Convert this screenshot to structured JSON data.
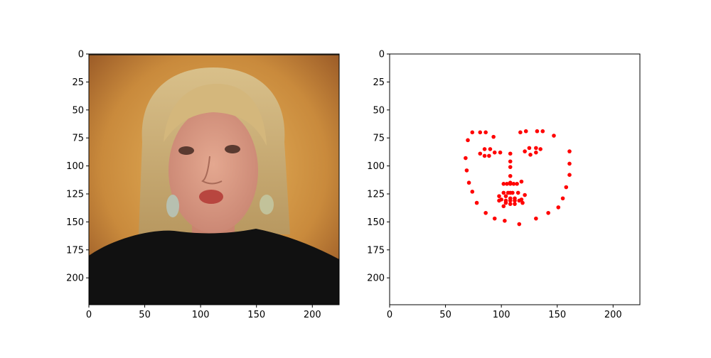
{
  "colors": {
    "landmark": "#ff0000",
    "frame": "#000000",
    "background": "#ffffff"
  },
  "chart_data": [
    {
      "type": "image",
      "description_note": "",
      "xlim": [
        0,
        224
      ],
      "ylim": [
        224,
        0
      ],
      "xticks": [
        0,
        50,
        100,
        150,
        200
      ],
      "yticks": [
        0,
        25,
        50,
        75,
        100,
        125,
        150,
        175,
        200
      ],
      "xtick_labels": [
        "0",
        "50",
        "100",
        "150",
        "200"
      ],
      "ytick_labels": [
        "0",
        "25",
        "50",
        "75",
        "100",
        "125",
        "150",
        "175",
        "200"
      ]
    },
    {
      "type": "scatter",
      "xlim": [
        0,
        224
      ],
      "ylim": [
        224,
        0
      ],
      "xticks": [
        0,
        50,
        100,
        150,
        200
      ],
      "yticks": [
        0,
        25,
        50,
        75,
        100,
        125,
        150,
        175,
        200
      ],
      "xtick_labels": [
        "0",
        "50",
        "100",
        "150",
        "200"
      ],
      "ytick_labels": [
        "0",
        "25",
        "50",
        "75",
        "100",
        "125",
        "150",
        "175",
        "200"
      ],
      "series": [
        {
          "points": [
            [
              68,
              93
            ],
            [
              69,
              104
            ],
            [
              71,
              115
            ],
            [
              74,
              123
            ],
            [
              78,
              133
            ],
            [
              86,
              142
            ],
            [
              94,
              147
            ],
            [
              103,
              149
            ],
            [
              116,
              152
            ],
            [
              131,
              147
            ],
            [
              142,
              142
            ],
            [
              151,
              137
            ],
            [
              155,
              129
            ],
            [
              158,
              119
            ],
            [
              161,
              108
            ],
            [
              161,
              98
            ],
            [
              161,
              87
            ],
            [
              70,
              77
            ],
            [
              74,
              70
            ],
            [
              81,
              70
            ],
            [
              86,
              70
            ],
            [
              93,
              74
            ],
            [
              117,
              70
            ],
            [
              122,
              69
            ],
            [
              132,
              69
            ],
            [
              137,
              69
            ],
            [
              147,
              73
            ],
            [
              108,
              89
            ],
            [
              108,
              96
            ],
            [
              108,
              101
            ],
            [
              108,
              109
            ],
            [
              108,
              115
            ],
            [
              102,
              116
            ],
            [
              105,
              116
            ],
            [
              108,
              116
            ],
            [
              111,
              116
            ],
            [
              114,
              116
            ],
            [
              81,
              89
            ],
            [
              85,
              85
            ],
            [
              90,
              85
            ],
            [
              94,
              88
            ],
            [
              89,
              91
            ],
            [
              85,
              91
            ],
            [
              121,
              87
            ],
            [
              125,
              84
            ],
            [
              131,
              84
            ],
            [
              135,
              85
            ],
            [
              131,
              88
            ],
            [
              126,
              90
            ],
            [
              98,
              127
            ],
            [
              102,
              124
            ],
            [
              106,
              124
            ],
            [
              108,
              124
            ],
            [
              110,
              124
            ],
            [
              115,
              124
            ],
            [
              121,
              126
            ],
            [
              116,
              131
            ],
            [
              112,
              134
            ],
            [
              108,
              134
            ],
            [
              104,
              133
            ],
            [
              100,
              130
            ],
            [
              98,
              131
            ],
            [
              104,
              127
            ],
            [
              108,
              129
            ],
            [
              112,
              129
            ],
            [
              118,
              130
            ],
            [
              112,
              131
            ],
            [
              108,
              131
            ],
            [
              104,
              131
            ],
            [
              99,
              88
            ],
            [
              118,
              114
            ],
            [
              119,
              133
            ],
            [
              102,
              136
            ]
          ]
        }
      ]
    }
  ]
}
